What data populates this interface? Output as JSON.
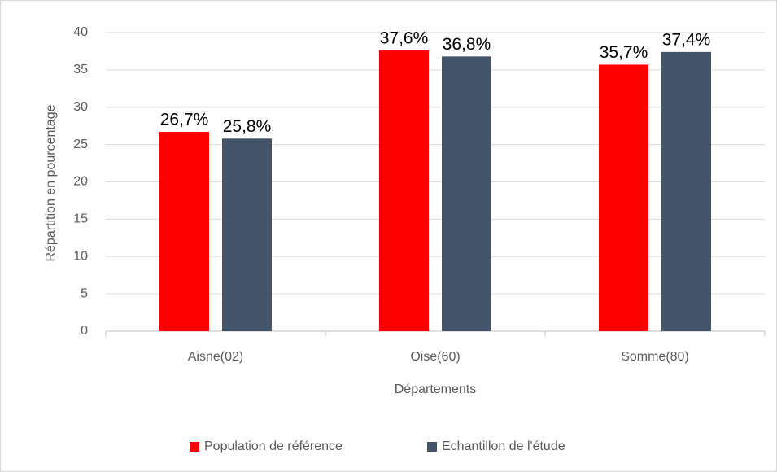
{
  "chart_data": {
    "type": "bar",
    "categories": [
      "Aisne(02)",
      "Oise(60)",
      "Somme(80)"
    ],
    "series": [
      {
        "name": "Population de référence",
        "color": "#ff0000",
        "values": [
          26.7,
          37.6,
          35.7
        ],
        "value_labels": [
          "26,7%",
          "37,6%",
          "35,7%"
        ]
      },
      {
        "name": "Echantillon de l'étude",
        "color": "#44546a",
        "values": [
          25.8,
          36.8,
          37.4
        ],
        "value_labels": [
          "25,8%",
          "36,8%",
          "37,4%"
        ]
      }
    ],
    "xlabel": "Départements",
    "ylabel": "Répartition en pourcentage",
    "ylim": [
      0,
      40
    ],
    "yticks": [
      0,
      5,
      10,
      15,
      20,
      25,
      30,
      35,
      40
    ],
    "grid": true,
    "legend": "bottom"
  }
}
